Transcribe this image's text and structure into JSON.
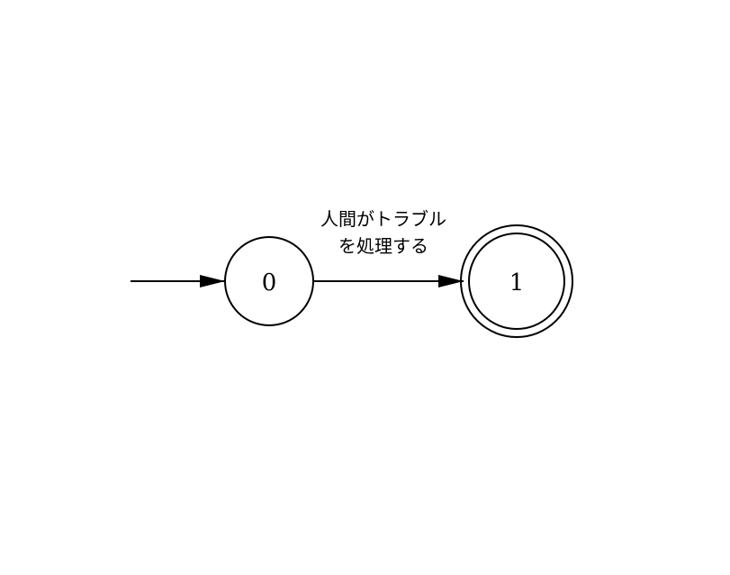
{
  "diagram": {
    "type": "finite-state-automaton",
    "states": [
      {
        "id": "0",
        "label": "0",
        "initial": true,
        "accepting": false
      },
      {
        "id": "1",
        "label": "1",
        "initial": false,
        "accepting": true
      }
    ],
    "transitions": [
      {
        "from": "0",
        "to": "1",
        "label_line1": "人間がトラブル",
        "label_line2": "を処理する"
      }
    ],
    "colors": {
      "stroke": "#000000",
      "background": "#ffffff"
    }
  }
}
